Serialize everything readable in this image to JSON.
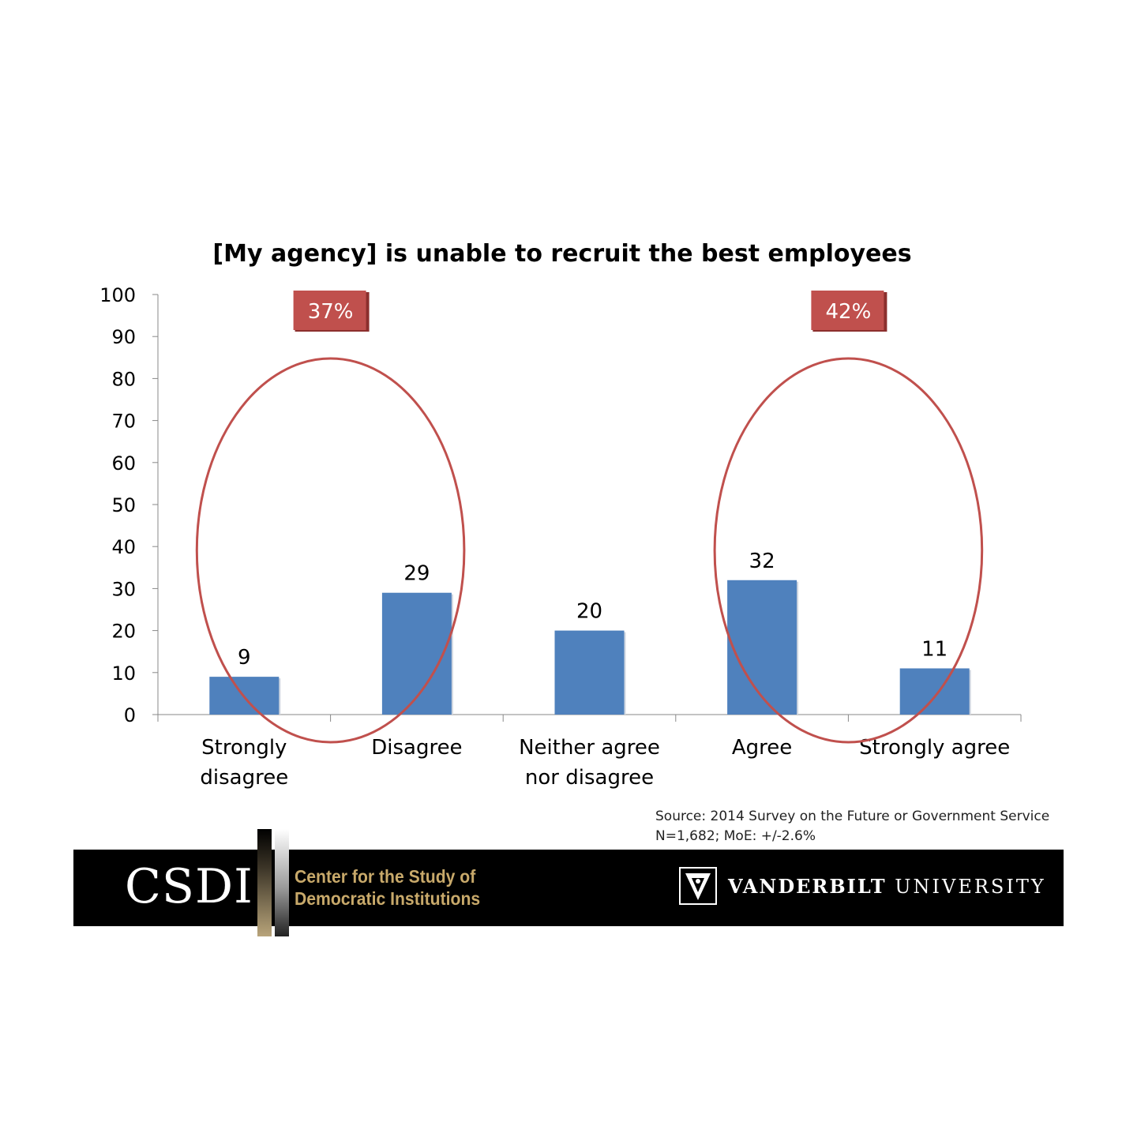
{
  "chart_data": {
    "type": "bar",
    "title": "[My agency] is unable to recruit the best employees",
    "categories": [
      "Strongly disagree",
      "Disagree",
      "Neither agree nor disagree",
      "Agree",
      "Strongly agree"
    ],
    "category_lines": [
      [
        "Strongly",
        "disagree"
      ],
      [
        "Disagree"
      ],
      [
        "Neither agree",
        "nor disagree"
      ],
      [
        "Agree"
      ],
      [
        "Strongly agree"
      ]
    ],
    "values": [
      9,
      29,
      20,
      32,
      11
    ],
    "data_labels": [
      "9",
      "29",
      "20",
      "32",
      "11"
    ],
    "ylim": [
      0,
      100
    ],
    "yticks": [
      0,
      10,
      20,
      30,
      40,
      50,
      60,
      70,
      80,
      90,
      100
    ],
    "grid": false,
    "legend": "none",
    "bar_color": "#4f81bd",
    "annotations": [
      {
        "label": "37%",
        "groups": [
          "Strongly disagree",
          "Disagree"
        ]
      },
      {
        "label": "42%",
        "groups": [
          "Agree",
          "Strongly agree"
        ]
      }
    ],
    "annotation_color": "#c0504d"
  },
  "source": {
    "line1": "Source: 2014 Survey on the Future or Government Service",
    "line2": "N=1,682; MoE: +/-2.6%"
  },
  "footer": {
    "logo": "CSDI",
    "center_name_line1": "Center for the Study of",
    "center_name_line2": "Democratic Institutions",
    "university_bold": "VANDERBILT",
    "university_rest": "UNIVERSITY",
    "university_icon": "vanderbilt-v-oak-icon"
  }
}
